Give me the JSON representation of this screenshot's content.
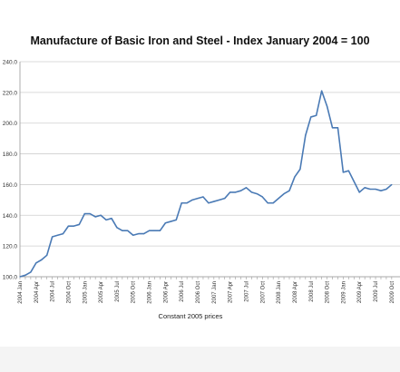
{
  "chart_data": {
    "type": "line",
    "title": "Manufacture of Basic Iron and Steel  - Index January 2004 = 100",
    "xlabel": "Constant  2005 prices",
    "ylabel": "",
    "ylim": [
      100,
      240
    ],
    "yticks": [
      100,
      120,
      140,
      160,
      180,
      200,
      220,
      240
    ],
    "ytick_labels": [
      "100.0",
      "120.0",
      "140.0",
      "160.0",
      "180.0",
      "200.0",
      "220.0",
      "240.0"
    ],
    "grid": "horizontal",
    "legend": "none",
    "line_color": "#4a7ab5",
    "x_tick_labels": [
      "2004 Jan",
      "2004 Apr",
      "2004 Jul",
      "2004 Oct",
      "2005 Jan",
      "2005 Apr",
      "2005 Jul",
      "2005 Oct",
      "2006 Jan",
      "2006 Apr",
      "2006 Jul",
      "2006 Oct",
      "2007 Jan",
      "2007 Apr",
      "2007 Jul",
      "2007 Oct",
      "2008 Jan",
      "2008 Apr",
      "2008 Jul",
      "2008 Oct",
      "2009 Jan",
      "2009 Apr",
      "2009 Jul",
      "2009 Oct"
    ],
    "series": [
      {
        "values": [
          100,
          101,
          103,
          109,
          111,
          114,
          126,
          127,
          128,
          133,
          133,
          134,
          141,
          141,
          139,
          140,
          137,
          138,
          132,
          130,
          130,
          127,
          128,
          128,
          130,
          130,
          130,
          135,
          136,
          137,
          148,
          148,
          150,
          151,
          152,
          148,
          149,
          150,
          151,
          155,
          155,
          156,
          158,
          155,
          154,
          152,
          148,
          148,
          151,
          154,
          156,
          165,
          170,
          192,
          204,
          205,
          221,
          211,
          197,
          197,
          168,
          169,
          162,
          155,
          158,
          157,
          157,
          156,
          157,
          160
        ]
      }
    ]
  }
}
